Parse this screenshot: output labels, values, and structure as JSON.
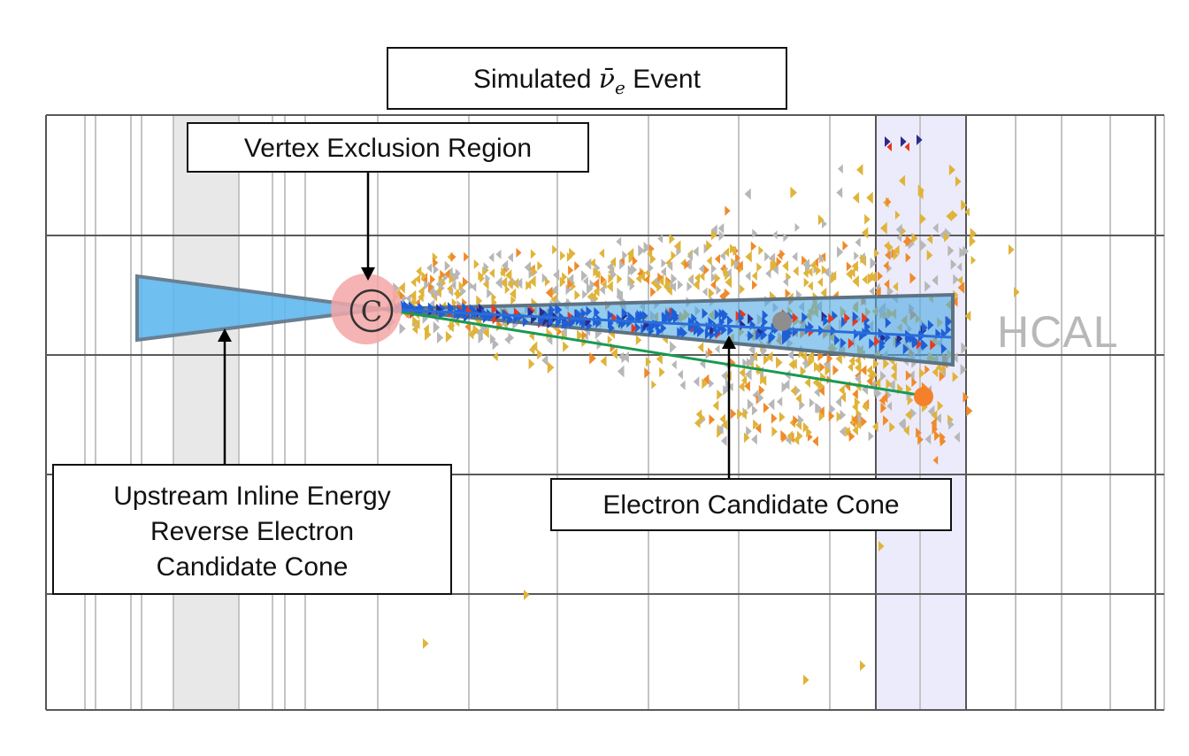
{
  "title": {
    "prefix": "Simulated ",
    "nu": "ν̄",
    "sub": "e",
    "suffix": " Event"
  },
  "labels": {
    "vertex_region": "Vertex Exclusion Region",
    "upstream_line1": "Upstream Inline Energy",
    "upstream_line2": "Reverse Electron",
    "upstream_line3": "Candidate Cone",
    "electron_cone": "Electron Candidate Cone",
    "hcal": "HCAL",
    "vertex_marker": "C"
  },
  "colors": {
    "cone_fill": "#5bb6ee",
    "cone_edge": "#6a7f91",
    "track_blue": "#1f5fd6",
    "track_green": "#1a9a52",
    "vertex_glow": "#f3a6a6",
    "hit_yellow": "#e0b43a",
    "hit_orange": "#f08a2a",
    "hit_red": "#e8391e",
    "hit_gray": "#b7b7b7",
    "hit_navy": "#2c2a8a",
    "hcal_band": "#ecebfb",
    "grid": "#555555"
  }
}
